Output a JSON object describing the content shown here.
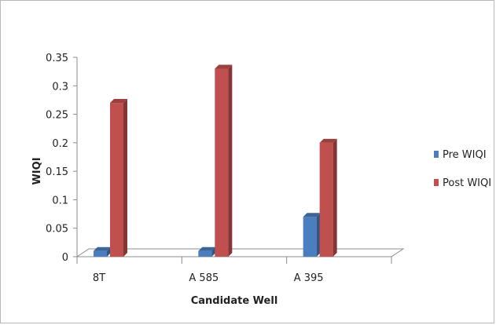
{
  "chart_data": {
    "type": "bar",
    "categories": [
      "8T",
      "A 585",
      "A 395"
    ],
    "series": [
      {
        "name": "Pre WIQI",
        "values": [
          0.01,
          0.01,
          0.07
        ],
        "color": "#4a7ebf"
      },
      {
        "name": "Post WIQI",
        "values": [
          0.27,
          0.33,
          0.2
        ],
        "color": "#c0504d"
      }
    ],
    "xlabel": "Candidate Well",
    "ylabel": "WIQI",
    "ylim": [
      0,
      0.35
    ],
    "yticks": [
      "0",
      "0.05",
      "0.1",
      "0.15",
      "0.2",
      "0.25",
      "0.3",
      "0.35"
    ],
    "legend_position": "right",
    "grid": false,
    "three_d": true
  }
}
